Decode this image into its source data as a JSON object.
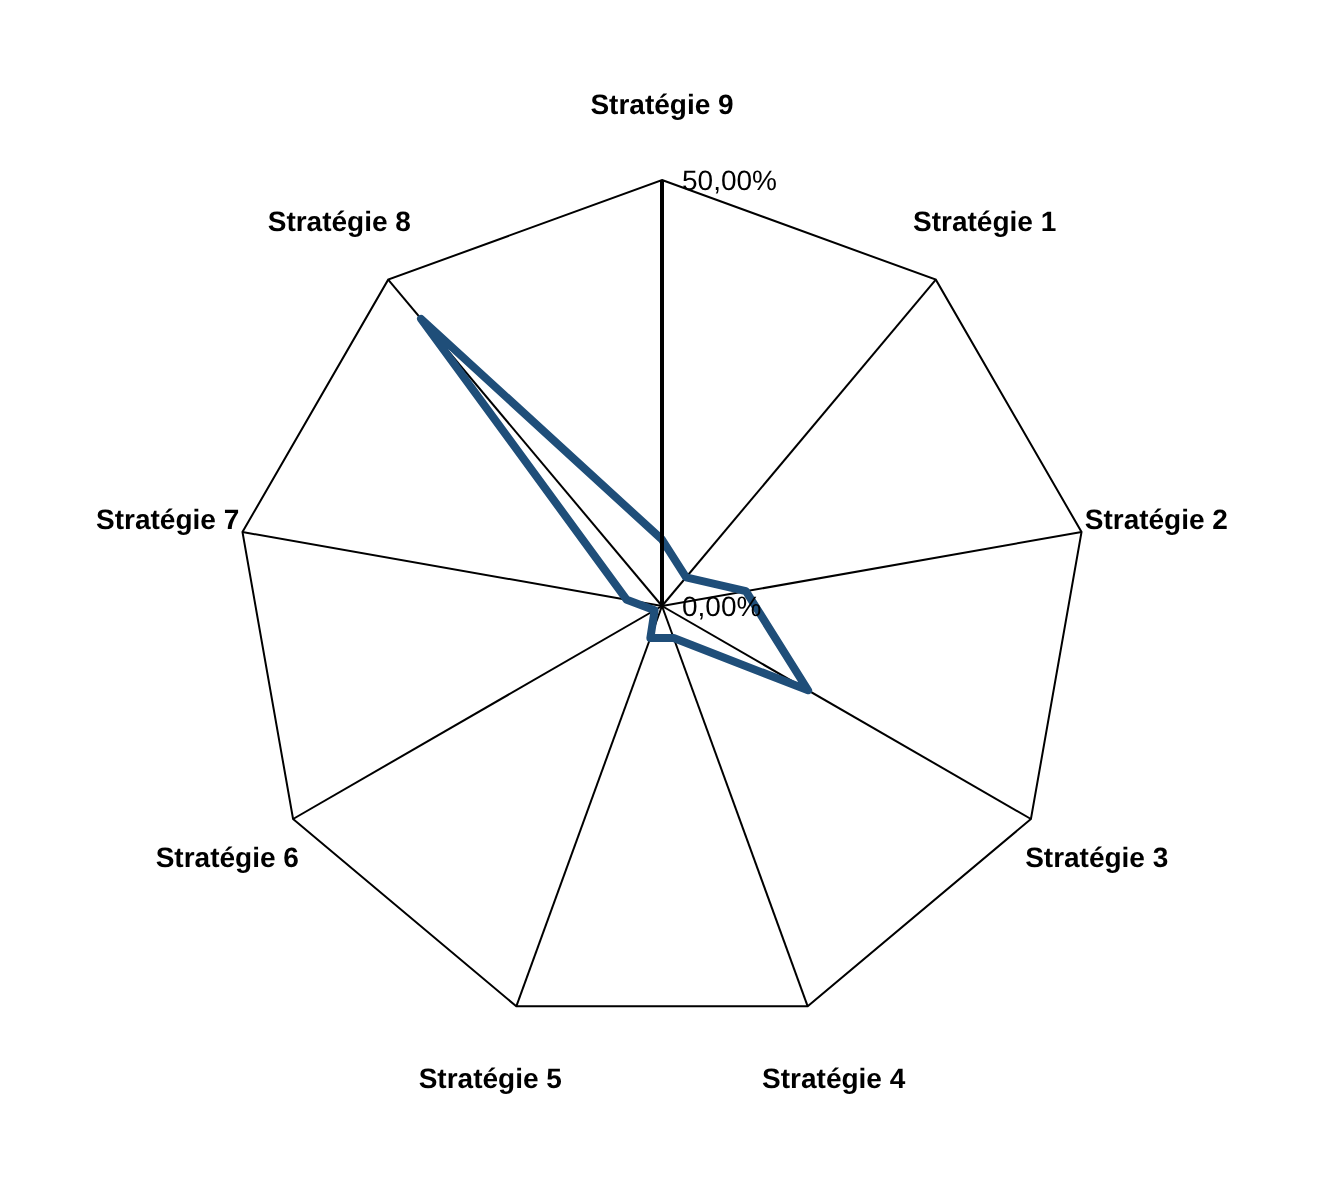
{
  "chart_data": {
    "type": "radar",
    "categories": [
      "Stratégie 9",
      "Stratégie 1",
      "Stratégie 2",
      "Stratégie 3",
      "Stratégie 4",
      "Stratégie 5",
      "Stratégie 6",
      "Stratégie 7",
      "Stratégie 8"
    ],
    "series": [
      {
        "color": "#1f4e79",
        "values": [
          7.8,
          4.4,
          10,
          19.8,
          4,
          4,
          1,
          4.2,
          44
        ]
      }
    ],
    "ylim": [
      0,
      50
    ],
    "yticks": [
      {
        "value": 0,
        "label": "0,00%"
      },
      {
        "value": 50,
        "label": "50,00%"
      }
    ],
    "grid": true,
    "marker": "none",
    "line_style": "solid"
  }
}
